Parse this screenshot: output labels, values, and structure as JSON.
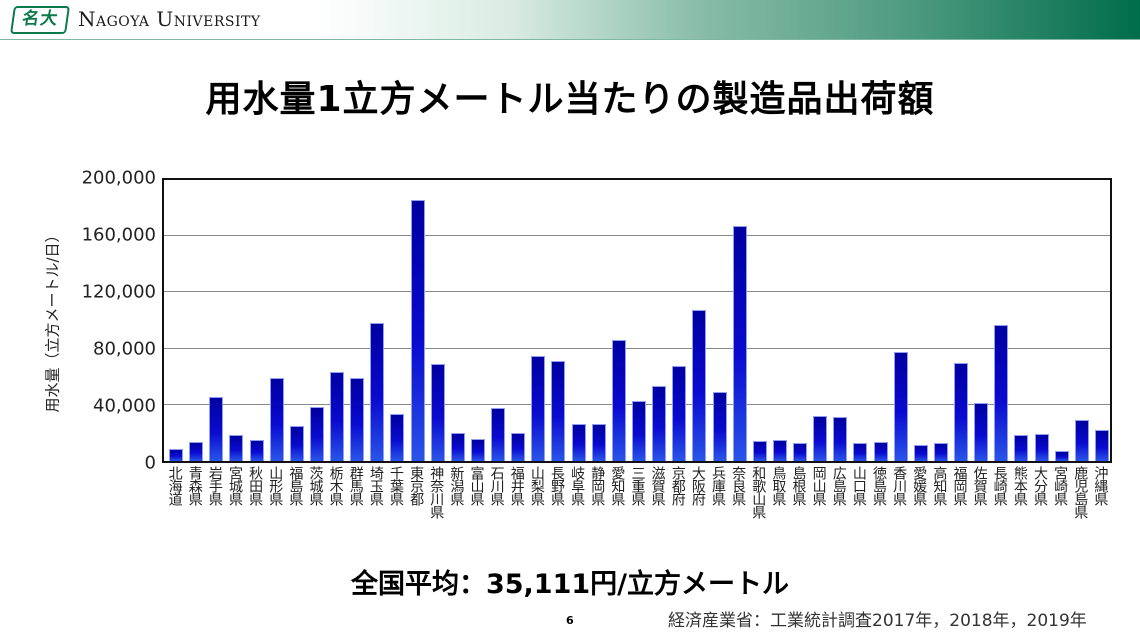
{
  "header": {
    "logo_mark": "名大",
    "university_name": "Nagoya University"
  },
  "slide": {
    "title": "用水量1立方メートル当たりの製造品出荷額",
    "average_text": "全国平均：35,111円/立方メートル",
    "page_number": "6",
    "source": "経済産業省：工業統計調査2017年，2018年，2019年"
  },
  "colors": {
    "bar_top": "#0000a0",
    "bar_bottom": "#2a55e8",
    "header_green": "#006d4a",
    "gridline": "#8a8a8a"
  },
  "chart_data": {
    "type": "bar",
    "title": "用水量1立方メートル当たりの製造品出荷額",
    "xlabel": "",
    "ylabel": "用水量（立方メートル/日）",
    "ylim": [
      0,
      200000
    ],
    "yticks": [
      "200,000",
      "160,000",
      "120,000",
      "80,000",
      "40,000",
      "0"
    ],
    "ytick_values": [
      200000,
      160000,
      120000,
      80000,
      40000,
      0
    ],
    "grid": true,
    "legend": null,
    "categories": [
      "北海道",
      "青森県",
      "岩手県",
      "宮城県",
      "秋田県",
      "山形県",
      "福島県",
      "茨城県",
      "栃木県",
      "群馬県",
      "埼玉県",
      "千葉県",
      "東京都",
      "神奈川県",
      "新潟県",
      "富山県",
      "石川県",
      "福井県",
      "山梨県",
      "長野県",
      "岐阜県",
      "静岡県",
      "愛知県",
      "三重県",
      "滋賀県",
      "京都府",
      "大阪府",
      "兵庫県",
      "奈良県",
      "和歌山県",
      "鳥取県",
      "島根県",
      "岡山県",
      "広島県",
      "山口県",
      "徳島県",
      "香川県",
      "愛媛県",
      "高知県",
      "福岡県",
      "佐賀県",
      "長崎県",
      "熊本県",
      "大分県",
      "宮崎県",
      "鹿児島県",
      "沖縄県"
    ],
    "values": [
      8400,
      13300,
      45600,
      18200,
      14700,
      58900,
      24600,
      38600,
      63200,
      58900,
      98200,
      33700,
      186000,
      68800,
      19600,
      15400,
      37900,
      19600,
      74400,
      70900,
      26700,
      26700,
      86300,
      42800,
      53300,
      67400,
      107400,
      49100,
      167000,
      14000,
      14700,
      12600,
      32300,
      31600,
      12600,
      13300,
      77900,
      11200,
      12600,
      69500,
      41400,
      96800,
      18200,
      18900,
      7000,
      29500,
      21800
    ],
    "annotation": "全国平均：35,111円/立方メートル"
  }
}
